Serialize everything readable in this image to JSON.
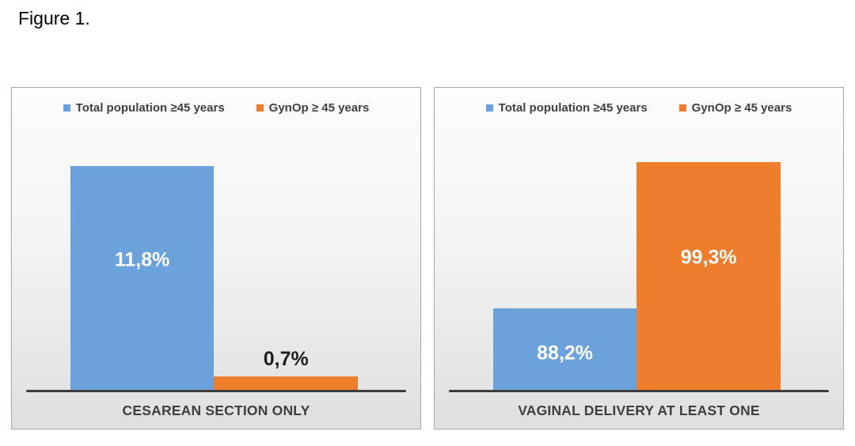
{
  "figure_label": "Figure 1.",
  "colors": {
    "bar_blue": "#6BA2DB",
    "bar_orange": "#EE7D2E",
    "axis_line": "#3C3C3C",
    "panel_border": "#A9A9A9",
    "label_text": "#3F3F3F",
    "in_bar_label": "#FFFFFF",
    "out_bar_label": "#1F1F1F"
  },
  "chart_data": [
    {
      "type": "bar",
      "panel": "left",
      "title": "",
      "xlabel": "",
      "ylabel": "",
      "category": "CESAREAN SECTION ONLY",
      "ylim": [
        0,
        12.5
      ],
      "grid": false,
      "legend_position": "top-center",
      "series": [
        {
          "name": "Total population ≥45 years",
          "value": 11.8,
          "label": "11,8%",
          "color": "#6BA2DB",
          "label_position": "inside"
        },
        {
          "name": "GynOp ≥ 45 years",
          "value": 0.7,
          "label": "0,7%",
          "color": "#EE7D2E",
          "label_position": "outside"
        }
      ]
    },
    {
      "type": "bar",
      "panel": "right",
      "title": "",
      "xlabel": "",
      "ylabel": "",
      "category": "VAGINAL DELIVERY AT LEAST ONE",
      "ylim": [
        82,
        100
      ],
      "grid": false,
      "legend_position": "top-center",
      "series": [
        {
          "name": "Total population ≥45 years",
          "value": 88.2,
          "label": "88,2%",
          "color": "#6BA2DB",
          "label_position": "inside"
        },
        {
          "name": "GynOp ≥ 45 years",
          "value": 99.3,
          "label": "99,3%",
          "color": "#EE7D2E",
          "label_position": "inside"
        }
      ]
    }
  ]
}
